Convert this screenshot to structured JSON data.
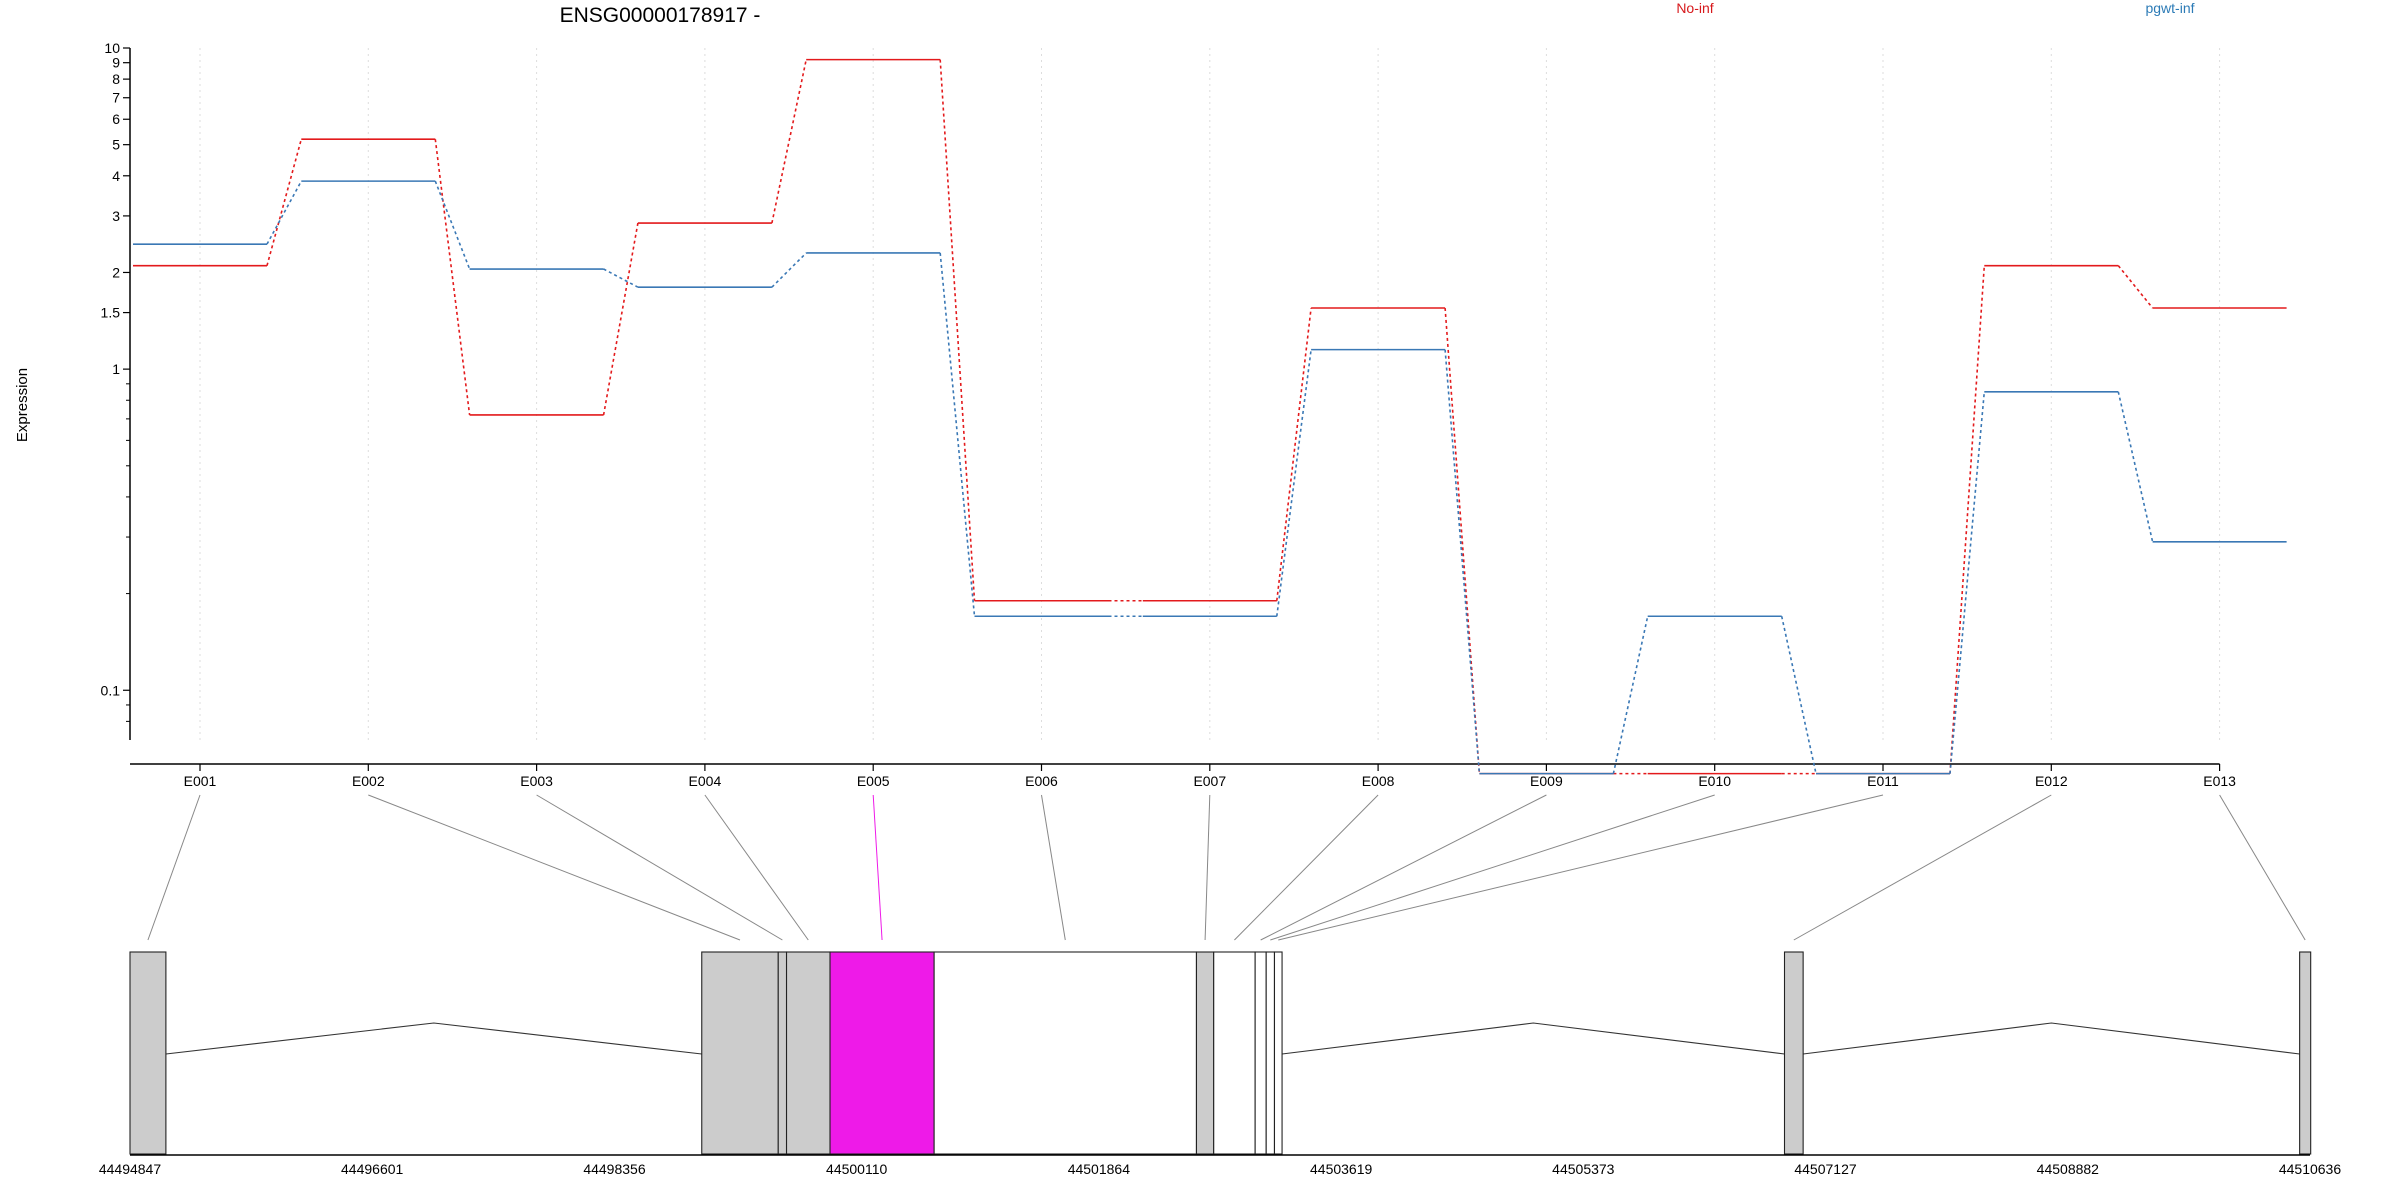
{
  "chart_data": {
    "type": "line",
    "title": "ENSG00000178917 -",
    "ylabel": "Expression",
    "xlabel": "",
    "y_scale": "log",
    "ylim": [
      0.07,
      10
    ],
    "y_ticks": [
      {
        "value": 0.1,
        "label": "0.1"
      },
      {
        "value": 1,
        "label": "1"
      },
      {
        "value": 1.5,
        "label": "1.5"
      },
      {
        "value": 2,
        "label": "2"
      },
      {
        "value": 3,
        "label": "3"
      },
      {
        "value": 4,
        "label": "4"
      },
      {
        "value": 5,
        "label": "5"
      },
      {
        "value": 6,
        "label": "6"
      },
      {
        "value": 7,
        "label": "7"
      },
      {
        "value": 8,
        "label": "8"
      },
      {
        "value": 9,
        "label": "9"
      },
      {
        "value": 10,
        "label": "10"
      }
    ],
    "categories": [
      "E001",
      "E002",
      "E003",
      "E004",
      "E005",
      "E006",
      "E007",
      "E008",
      "E009",
      "E010",
      "E011",
      "E012",
      "E013"
    ],
    "highlighted_exon": "E005",
    "grid": "vertical dotted",
    "legend_placement": "top",
    "series": [
      {
        "name": "No-inf",
        "color": "#e31a1c",
        "values": [
          2.1,
          5.2,
          0.72,
          2.85,
          9.2,
          0.19,
          0.19,
          1.55,
          0.055,
          0.055,
          0.055,
          2.1,
          1.55
        ]
      },
      {
        "name": "pgwt-inf",
        "color": "#3a78b5",
        "values": [
          2.45,
          3.85,
          2.05,
          1.8,
          2.3,
          0.17,
          0.17,
          1.15,
          0.055,
          0.17,
          0.055,
          0.85,
          0.29
        ]
      }
    ],
    "gene_model": {
      "axis_labels": [
        "44494847",
        "44496601",
        "44498356",
        "44500110",
        "44501864",
        "44503619",
        "44505373",
        "44507127",
        "44508882",
        "44510636"
      ],
      "axis_values": [
        44494847,
        44496601,
        44498356,
        44500110,
        44501864,
        44503619,
        44505373,
        44507127,
        44508882,
        44510636
      ],
      "exons": [
        {
          "id": "E001",
          "start": 44494847,
          "end": 44495107
        },
        {
          "id": "E002",
          "start": 44498988,
          "end": 44499542
        },
        {
          "id": "E003",
          "start": 44499542,
          "end": 44499602
        },
        {
          "id": "E004",
          "start": 44499602,
          "end": 44499917
        },
        {
          "id": "E005",
          "start": 44499917,
          "end": 44500671
        },
        {
          "id": "E006",
          "start": 44500671,
          "end": 44502571
        },
        {
          "id": "E007",
          "start": 44502571,
          "end": 44502696
        },
        {
          "id": "E008",
          "start": 44502696,
          "end": 44502996
        },
        {
          "id": "E009",
          "start": 44502996,
          "end": 44503076
        },
        {
          "id": "E010",
          "start": 44503076,
          "end": 44503136
        },
        {
          "id": "E011",
          "start": 44503136,
          "end": 44503191
        },
        {
          "id": "E012",
          "start": 44506830,
          "end": 44506965
        },
        {
          "id": "E013",
          "start": 44510561,
          "end": 44510641
        }
      ],
      "shaded_exons": [
        "E001",
        "E002",
        "E003",
        "E004",
        "E007",
        "E012",
        "E013"
      ],
      "highlight_color": "#ee1ae8",
      "shade_color": "#cccccc"
    }
  }
}
